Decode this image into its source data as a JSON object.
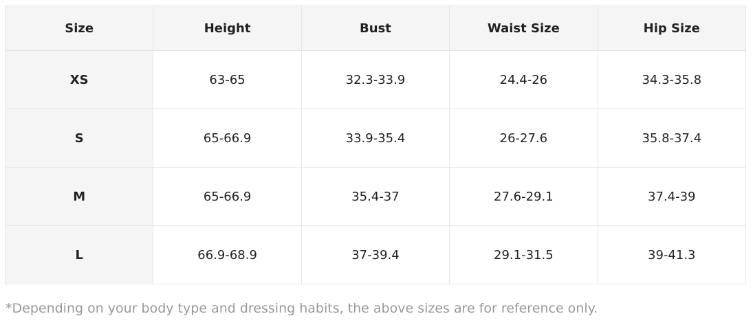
{
  "table": {
    "header": [
      "Size",
      "Height",
      "Bust",
      "Waist Size",
      "Hip Size"
    ],
    "rows": [
      [
        "XS",
        "63-65",
        "32.3-33.9",
        "24.4-26",
        "34.3-35.8"
      ],
      [
        "S",
        "65-66.9",
        "33.9-35.4",
        "26-27.6",
        "35.8-37.4"
      ],
      [
        "M",
        "65-66.9",
        "35.4-37",
        "27.6-29.1",
        "37.4-39"
      ],
      [
        "L",
        "66.9-68.9",
        "37-39.4",
        "29.1-31.5",
        "39-41.3"
      ]
    ]
  },
  "note": "*Depending on your body type and dressing habits, the above sizes are for reference only."
}
